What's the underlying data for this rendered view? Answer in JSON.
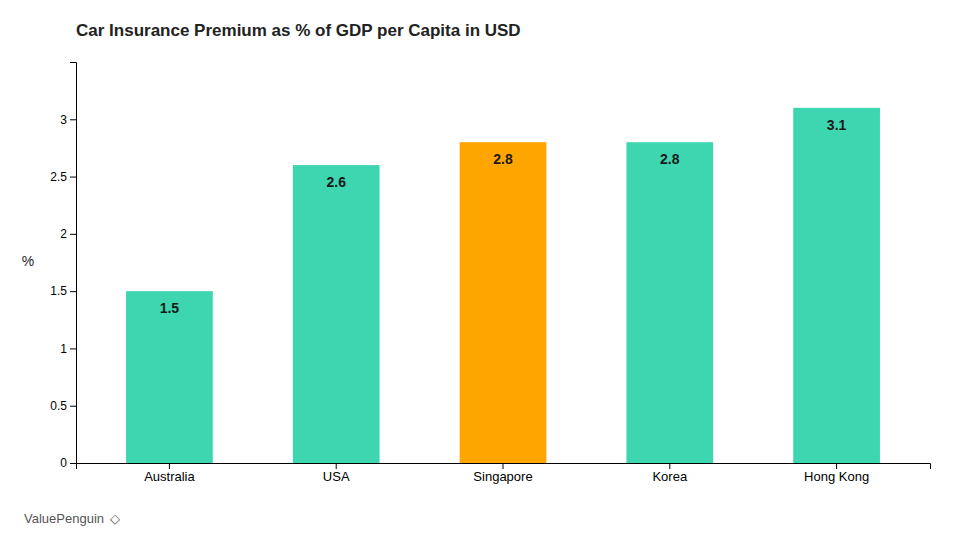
{
  "chart_data": {
    "type": "bar",
    "title": "Car Insurance Premium as % of GDP per Capita in USD",
    "y_label": "%",
    "categories": [
      "Australia",
      "USA",
      "Singapore",
      "Korea",
      "Hong Kong"
    ],
    "values": [
      1.5,
      2.6,
      2.8,
      2.8,
      3.1
    ],
    "colors": [
      "#3DD6B0",
      "#3DD6B0",
      "#FFA500",
      "#3DD6B0",
      "#3DD6B0"
    ],
    "ylim": [
      0,
      3.5
    ],
    "yticks": [
      0,
      0.5,
      1,
      1.5,
      2,
      2.5,
      3
    ],
    "grid": false,
    "data_labels": true,
    "annotations": [
      "ValuePenguin",
      "◇"
    ]
  }
}
